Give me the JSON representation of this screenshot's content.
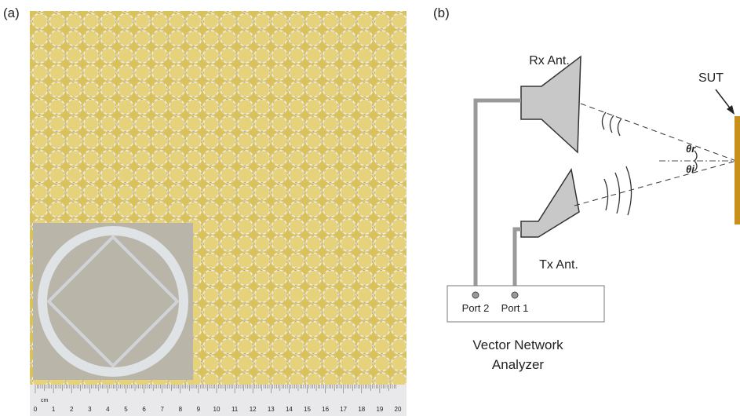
{
  "panel_a": {
    "label": "(a)",
    "ruler": {
      "unit": "cm",
      "labels": [
        "0",
        "1",
        "2",
        "3",
        "4",
        "5",
        "6",
        "7",
        "8",
        "9",
        "10",
        "11",
        "12",
        "13",
        "14",
        "15",
        "16",
        "17",
        "18",
        "19",
        "20"
      ]
    }
  },
  "panel_b": {
    "label": "(b)",
    "rx": "Rx Ant.",
    "tx": "Tx Ant.",
    "sut": "SUT",
    "theta_r": "θr",
    "theta_i": "θi",
    "port2": "Port 2",
    "port1": "Port 1",
    "analyzer": [
      "Vector Network",
      "Analyzer"
    ]
  }
}
